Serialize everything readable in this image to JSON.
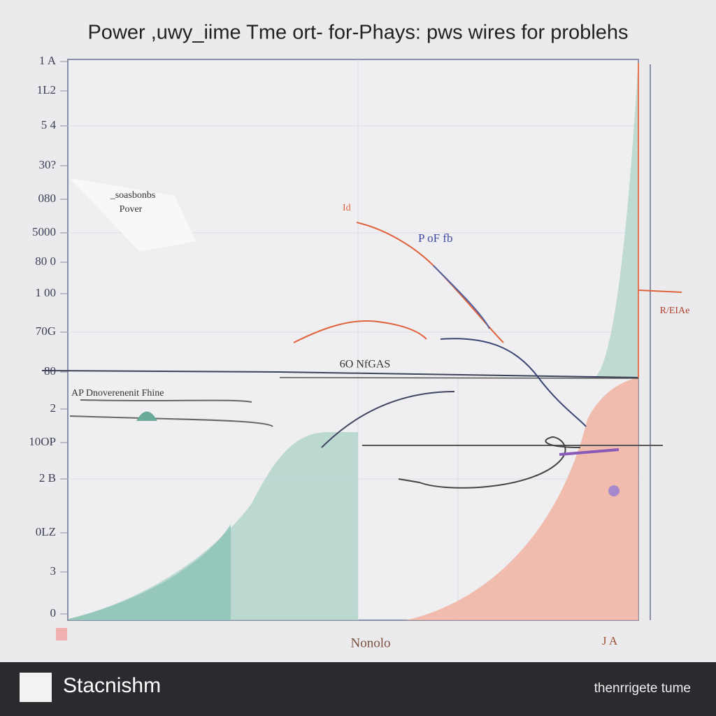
{
  "title": "Power ,uwy_iime Tme ort- for-Phays: pws wires for problehs",
  "y_labels": [
    "1 A",
    "1L2",
    "5 4",
    "30?",
    "080",
    "5000",
    "80 0",
    "1 00",
    "70G",
    "80",
    "2",
    "10OP",
    "2 B",
    "0LZ",
    "3",
    "0"
  ],
  "annotations": {
    "legend_1": "_soasbonbs",
    "legend_2": "Pover",
    "orange_tag": "Id",
    "blue_tag": "P oF fb",
    "right_tag": "R/EIAe",
    "mid_tag": "6O NfGAS",
    "left_tag": "AP Dnoverenenit Fhine"
  },
  "x_labels": [
    "Nonolo",
    "J A"
  ],
  "footer": {
    "brand": "Stacnishm",
    "caption": "thenrrigete tume"
  }
}
